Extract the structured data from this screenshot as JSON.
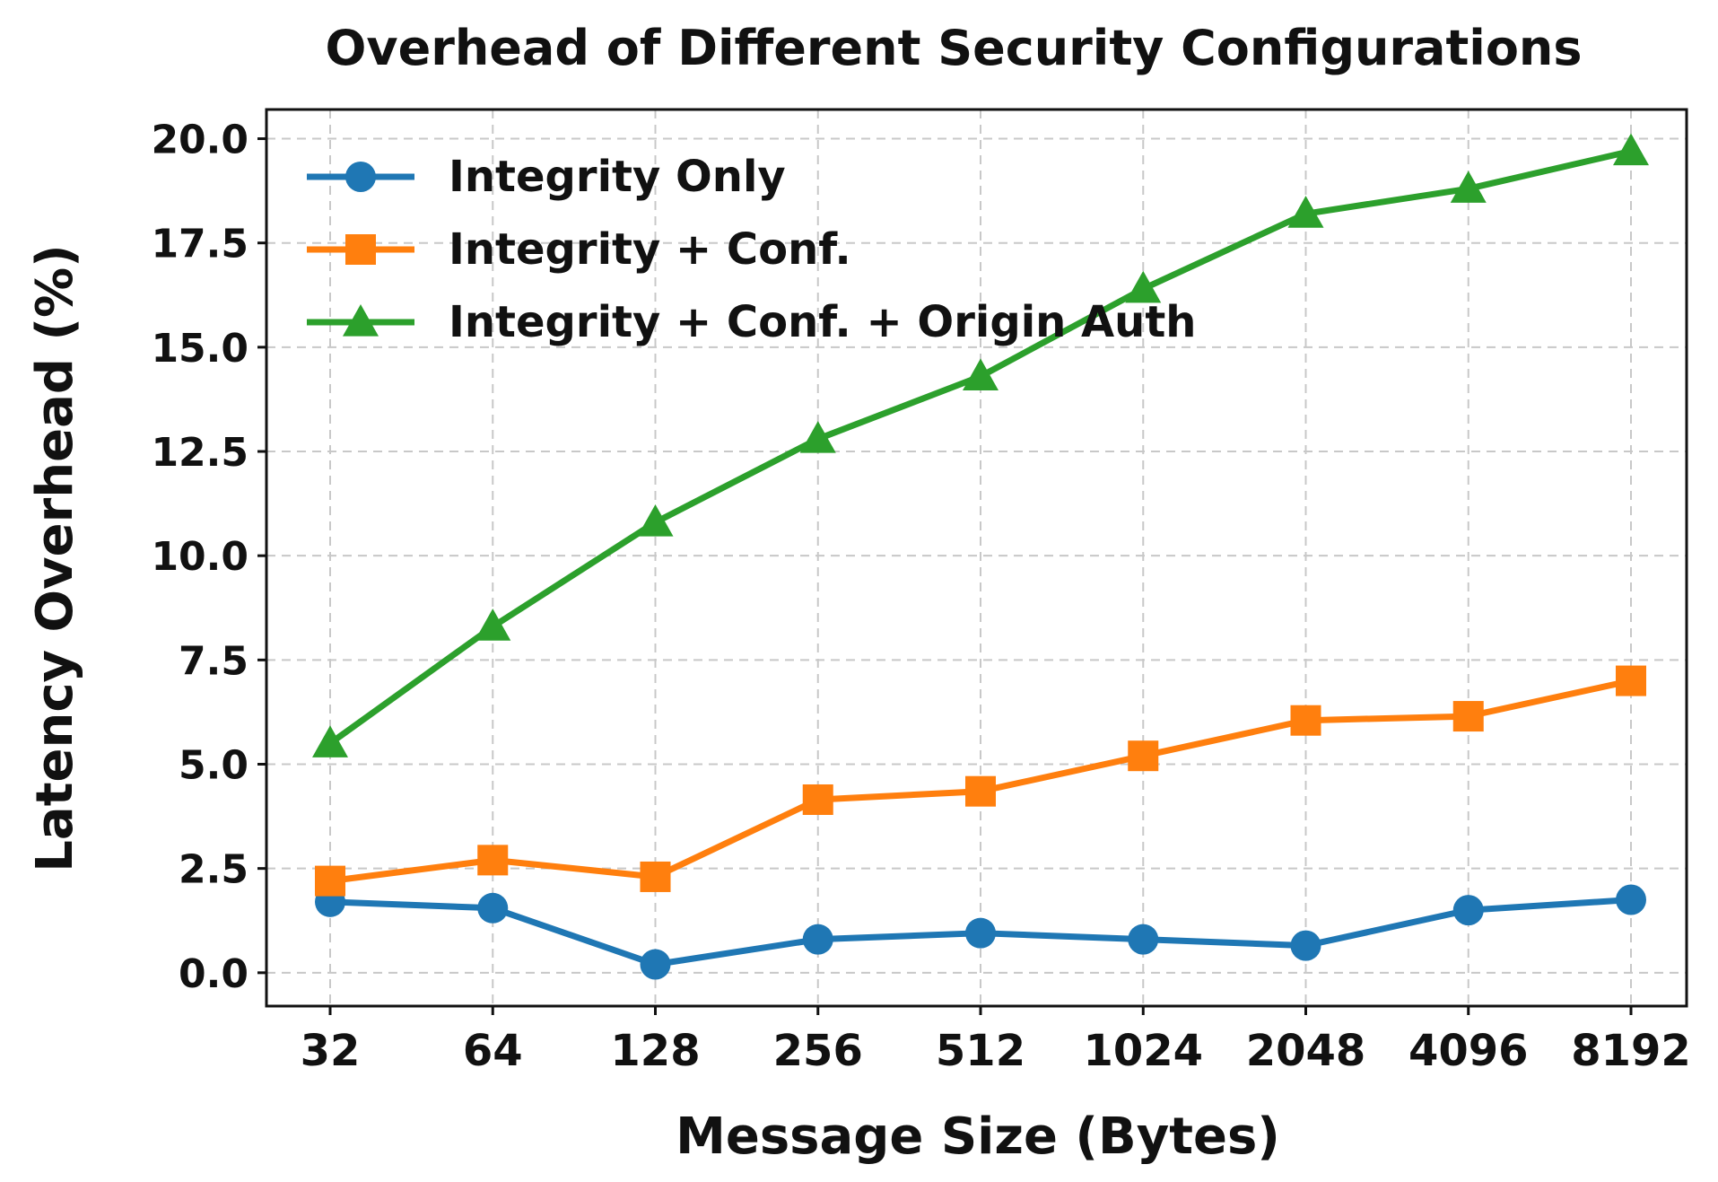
{
  "chart_data": {
    "type": "line",
    "title": "Overhead of Different Security Configurations",
    "xlabel": "Message Size (Bytes)",
    "ylabel": "Latency Overhead (%)",
    "categories": [
      "32",
      "64",
      "128",
      "256",
      "512",
      "1024",
      "2048",
      "4096",
      "8192"
    ],
    "ylim": [
      -0.8,
      20.7
    ],
    "yticks": [
      0.0,
      2.5,
      5.0,
      7.5,
      10.0,
      12.5,
      15.0,
      17.5,
      20.0
    ],
    "ytick_labels": [
      "0.0",
      "2.5",
      "5.0",
      "7.5",
      "10.0",
      "12.5",
      "15.0",
      "17.5",
      "20.0"
    ],
    "grid": true,
    "legend_position": "top-left",
    "series": [
      {
        "name": "Integrity Only",
        "color": "#1f77b4",
        "marker": "circle",
        "values": [
          1.7,
          1.55,
          0.2,
          0.8,
          0.95,
          0.8,
          0.65,
          1.5,
          1.75
        ]
      },
      {
        "name": "Integrity + Conf.",
        "color": "#ff7f0e",
        "marker": "square",
        "values": [
          2.2,
          2.7,
          2.3,
          4.15,
          4.35,
          5.2,
          6.05,
          6.15,
          7.0
        ]
      },
      {
        "name": "Integrity + Conf. + Origin Auth",
        "color": "#2ca02c",
        "marker": "triangle",
        "values": [
          5.5,
          8.3,
          10.8,
          12.8,
          14.3,
          16.4,
          18.2,
          18.8,
          19.7
        ]
      }
    ]
  }
}
